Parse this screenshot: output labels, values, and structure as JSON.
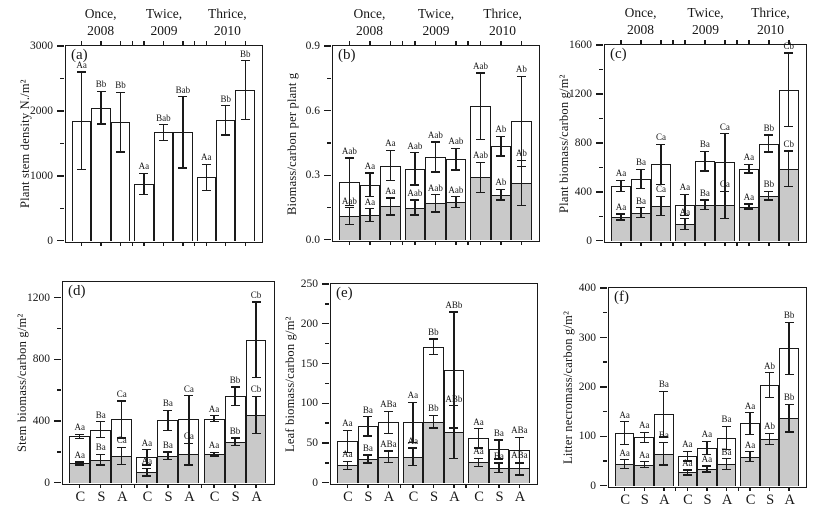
{
  "figure": {
    "background": "#ffffff",
    "axis_color": "#1a1a1a",
    "bar_fill_total": "#ffffff",
    "bar_fill_carbon": "#c9c9c9",
    "x_categories": [
      "C",
      "S",
      "A"
    ],
    "group_headers": [
      {
        "line1": "Once,",
        "line2": "2008"
      },
      {
        "line1": "Twice,",
        "line2": "2009"
      },
      {
        "line1": "Thrice,",
        "line2": "2010"
      }
    ]
  },
  "chart_data": [
    {
      "id": "a",
      "panel_label": "(a)",
      "type": "bar",
      "ylabel": "Plant stem density N./m²",
      "ylim": [
        0,
        3000
      ],
      "minor_step": 500,
      "yticks": [
        {
          "v": 0,
          "label": "0"
        },
        {
          "v": 1000,
          "label": "1000"
        },
        {
          "v": 2000,
          "label": "2000"
        },
        {
          "v": 3000,
          "label": "3000"
        }
      ],
      "two_tone": false,
      "show_group_headers": true,
      "show_x_categories": false,
      "groups": [
        {
          "header": "Once, 2008",
          "bars": [
            {
              "cat": "C",
              "total": 1850,
              "total_err": 750,
              "total_sig": "Aa"
            },
            {
              "cat": "S",
              "total": 2050,
              "total_err": 250,
              "total_sig": "Bb"
            },
            {
              "cat": "A",
              "total": 1830,
              "total_err": 460,
              "total_sig": "Bb"
            }
          ]
        },
        {
          "header": "Twice, 2009",
          "bars": [
            {
              "cat": "C",
              "total": 875,
              "total_err": 165,
              "total_sig": "Aa"
            },
            {
              "cat": "S",
              "total": 1670,
              "total_err": 120,
              "total_sig": "Bab"
            },
            {
              "cat": "A",
              "total": 1670,
              "total_err": 550,
              "total_sig": "Bab"
            }
          ]
        },
        {
          "header": "Thrice, 2010",
          "bars": [
            {
              "cat": "C",
              "total": 980,
              "total_err": 200,
              "total_sig": "Aa"
            },
            {
              "cat": "S",
              "total": 1855,
              "total_err": 225,
              "total_sig": "Bb"
            },
            {
              "cat": "A",
              "total": 2320,
              "total_err": 455,
              "total_sig": "Bb"
            }
          ]
        }
      ]
    },
    {
      "id": "b",
      "panel_label": "(b)",
      "type": "bar",
      "ylabel": "Biomass/carbon per plant g",
      "ylim": [
        0,
        0.9
      ],
      "minor_step": 0.15,
      "yticks": [
        {
          "v": 0,
          "label": "0.0"
        },
        {
          "v": 0.3,
          "label": "0.3"
        },
        {
          "v": 0.6,
          "label": "0.6"
        },
        {
          "v": 0.9,
          "label": "0.9"
        }
      ],
      "two_tone": true,
      "show_group_headers": true,
      "show_x_categories": false,
      "groups": [
        {
          "header": "Once, 2008",
          "bars": [
            {
              "cat": "C",
              "total": 0.27,
              "total_err": 0.11,
              "total_sig": "Aab",
              "carbon": 0.11,
              "carbon_err": 0.04,
              "carbon_sig": "Aab"
            },
            {
              "cat": "S",
              "total": 0.255,
              "total_err": 0.055,
              "total_sig": "Aa",
              "carbon": 0.115,
              "carbon_err": 0.03,
              "carbon_sig": "Aa"
            },
            {
              "cat": "A",
              "total": 0.345,
              "total_err": 0.07,
              "total_sig": "Aa",
              "carbon": 0.155,
              "carbon_err": 0.04,
              "carbon_sig": "Aa"
            }
          ]
        },
        {
          "header": "Twice, 2009",
          "bars": [
            {
              "cat": "C",
              "total": 0.33,
              "total_err": 0.075,
              "total_sig": "Aab",
              "carbon": 0.15,
              "carbon_err": 0.035,
              "carbon_sig": "Aab"
            },
            {
              "cat": "S",
              "total": 0.385,
              "total_err": 0.07,
              "total_sig": "Aab",
              "carbon": 0.17,
              "carbon_err": 0.04,
              "carbon_sig": "Aab"
            },
            {
              "cat": "A",
              "total": 0.375,
              "total_err": 0.05,
              "total_sig": "Aab",
              "carbon": 0.175,
              "carbon_err": 0.025,
              "carbon_sig": "Aab"
            }
          ]
        },
        {
          "header": "Thrice, 2010",
          "bars": [
            {
              "cat": "C",
              "total": 0.62,
              "total_err": 0.155,
              "total_sig": "Aab",
              "carbon": 0.29,
              "carbon_err": 0.07,
              "carbon_sig": "Aab"
            },
            {
              "cat": "S",
              "total": 0.435,
              "total_err": 0.045,
              "total_sig": "Ab",
              "carbon": 0.21,
              "carbon_err": 0.025,
              "carbon_sig": "Ab"
            },
            {
              "cat": "A",
              "total": 0.55,
              "total_err": 0.21,
              "total_sig": "Ab",
              "carbon": 0.265,
              "carbon_err": 0.105,
              "carbon_sig": "Ab"
            }
          ]
        }
      ]
    },
    {
      "id": "c",
      "panel_label": "(c)",
      "type": "bar",
      "ylabel": "Plant biomass/carbon g/m²",
      "ylim": [
        0,
        1600
      ],
      "minor_step": 200,
      "yticks": [
        {
          "v": 0,
          "label": "0"
        },
        {
          "v": 400,
          "label": "400"
        },
        {
          "v": 800,
          "label": "800"
        },
        {
          "v": 1200,
          "label": "1200"
        },
        {
          "v": 1600,
          "label": "1600"
        }
      ],
      "two_tone": true,
      "show_group_headers": true,
      "show_x_categories": false,
      "groups": [
        {
          "header": "Once, 2008",
          "bars": [
            {
              "cat": "C",
              "total": 450,
              "total_err": 45,
              "total_sig": "Aa",
              "carbon": 195,
              "carbon_err": 25,
              "carbon_sig": "Aa"
            },
            {
              "cat": "S",
              "total": 505,
              "total_err": 80,
              "total_sig": "Ba",
              "carbon": 230,
              "carbon_err": 40,
              "carbon_sig": "Ba"
            },
            {
              "cat": "A",
              "total": 625,
              "total_err": 165,
              "total_sig": "Ca",
              "carbon": 285,
              "carbon_err": 80,
              "carbon_sig": "Ca"
            }
          ]
        },
        {
          "header": "Twice, 2009",
          "bars": [
            {
              "cat": "C",
              "total": 295,
              "total_err": 85,
              "total_sig": "Aa",
              "carbon": 135,
              "carbon_err": 45,
              "carbon_sig": "Aa"
            },
            {
              "cat": "S",
              "total": 650,
              "total_err": 80,
              "total_sig": "Ba",
              "carbon": 295,
              "carbon_err": 40,
              "carbon_sig": "Ba"
            },
            {
              "cat": "A",
              "total": 640,
              "total_err": 235,
              "total_sig": "Ca",
              "carbon": 295,
              "carbon_err": 110,
              "carbon_sig": "Ca"
            }
          ]
        },
        {
          "header": "Thrice, 2010",
          "bars": [
            {
              "cat": "C",
              "total": 590,
              "total_err": 35,
              "total_sig": "Aa",
              "carbon": 280,
              "carbon_err": 20,
              "carbon_sig": "Aa"
            },
            {
              "cat": "S",
              "total": 795,
              "total_err": 70,
              "total_sig": "Bb",
              "carbon": 370,
              "carbon_err": 35,
              "carbon_sig": "Bb"
            },
            {
              "cat": "A",
              "total": 1235,
              "total_err": 300,
              "total_sig": "Cb",
              "carbon": 590,
              "carbon_err": 145,
              "carbon_sig": "Cb"
            }
          ]
        }
      ]
    },
    {
      "id": "d",
      "panel_label": "(d)",
      "type": "bar",
      "ylabel": "Stem biomass/carbon g/m²",
      "ylim": [
        0,
        1300
      ],
      "minor_step": 200,
      "yticks": [
        {
          "v": 0,
          "label": "0"
        },
        {
          "v": 400,
          "label": "400"
        },
        {
          "v": 800,
          "label": "800"
        },
        {
          "v": 1200,
          "label": "1200"
        }
      ],
      "two_tone": true,
      "show_group_headers": false,
      "show_x_categories": true,
      "groups": [
        {
          "header": "Once, 2008",
          "bars": [
            {
              "cat": "C",
              "total": 300,
              "total_err": 15,
              "total_sig": "Aa",
              "carbon": 125,
              "carbon_err": 10,
              "carbon_sig": "Aa"
            },
            {
              "cat": "S",
              "total": 345,
              "total_err": 50,
              "total_sig": "Ba",
              "carbon": 150,
              "carbon_err": 35,
              "carbon_sig": "Ba"
            },
            {
              "cat": "A",
              "total": 410,
              "total_err": 120,
              "total_sig": "Ca",
              "carbon": 175,
              "carbon_err": 55,
              "carbon_sig": "Ca"
            }
          ]
        },
        {
          "header": "Twice, 2009",
          "bars": [
            {
              "cat": "C",
              "total": 165,
              "total_err": 50,
              "total_sig": "Aa",
              "carbon": 70,
              "carbon_err": 25,
              "carbon_sig": "Aa"
            },
            {
              "cat": "S",
              "total": 405,
              "total_err": 65,
              "total_sig": "Ba",
              "carbon": 175,
              "carbon_err": 25,
              "carbon_sig": "Ba"
            },
            {
              "cat": "A",
              "total": 410,
              "total_err": 155,
              "total_sig": "Ca",
              "carbon": 185,
              "carbon_err": 70,
              "carbon_sig": "Ca"
            }
          ]
        },
        {
          "header": "Thrice, 2010",
          "bars": [
            {
              "cat": "C",
              "total": 415,
              "total_err": 20,
              "total_sig": "Aa",
              "carbon": 185,
              "carbon_err": 12,
              "carbon_sig": "Aa"
            },
            {
              "cat": "S",
              "total": 560,
              "total_err": 60,
              "total_sig": "Bb",
              "carbon": 265,
              "carbon_err": 25,
              "carbon_sig": "Bb"
            },
            {
              "cat": "A",
              "total": 925,
              "total_err": 245,
              "total_sig": "Cb",
              "carbon": 440,
              "carbon_err": 120,
              "carbon_sig": "Cb"
            }
          ]
        }
      ]
    },
    {
      "id": "e",
      "panel_label": "(e)",
      "type": "bar",
      "ylabel": "Leaf biomass/carbon g/m²",
      "ylim": [
        0,
        250
      ],
      "minor_step": 25,
      "yticks": [
        {
          "v": 0,
          "label": "0"
        },
        {
          "v": 50,
          "label": "50"
        },
        {
          "v": 100,
          "label": "100"
        },
        {
          "v": 150,
          "label": "150"
        },
        {
          "v": 200,
          "label": "200"
        },
        {
          "v": 250,
          "label": "250"
        }
      ],
      "two_tone": true,
      "show_group_headers": false,
      "show_x_categories": true,
      "groups": [
        {
          "header": "Once, 2008",
          "bars": [
            {
              "cat": "C",
              "total": 52,
              "total_err": 14,
              "total_sig": "Aa",
              "carbon": 22,
              "carbon_err": 5,
              "carbon_sig": "Aa"
            },
            {
              "cat": "S",
              "total": 71,
              "total_err": 12,
              "total_sig": "Ba",
              "carbon": 30,
              "carbon_err": 5,
              "carbon_sig": "Ba"
            },
            {
              "cat": "A",
              "total": 76,
              "total_err": 14,
              "total_sig": "ABa",
              "carbon": 33,
              "carbon_err": 7,
              "carbon_sig": "ABa"
            }
          ]
        },
        {
          "header": "Twice, 2009",
          "bars": [
            {
              "cat": "C",
              "total": 76,
              "total_err": 25,
              "total_sig": "Aa",
              "carbon": 33,
              "carbon_err": 11,
              "carbon_sig": "Aa"
            },
            {
              "cat": "S",
              "total": 171,
              "total_err": 10,
              "total_sig": "Bb",
              "carbon": 77,
              "carbon_err": 8,
              "carbon_sig": "Bb"
            },
            {
              "cat": "A",
              "total": 142,
              "total_err": 73,
              "total_sig": "ABb",
              "carbon": 64,
              "carbon_err": 33,
              "carbon_sig": "ABb"
            }
          ]
        },
        {
          "header": "Thrice, 2010",
          "bars": [
            {
              "cat": "C",
              "total": 56,
              "total_err": 12,
              "total_sig": "Aa",
              "carbon": 26,
              "carbon_err": 5,
              "carbon_sig": "Aa"
            },
            {
              "cat": "S",
              "total": 42,
              "total_err": 12,
              "total_sig": "Ba",
              "carbon": 19,
              "carbon_err": 6,
              "carbon_sig": "Ba"
            },
            {
              "cat": "A",
              "total": 41,
              "total_err": 16,
              "total_sig": "ABa",
              "carbon": 18,
              "carbon_err": 8,
              "carbon_sig": "ABa"
            }
          ]
        }
      ]
    },
    {
      "id": "f",
      "panel_label": "(f)",
      "type": "bar",
      "ylabel": "Litter necromass/carbon g/m²",
      "ylim": [
        0,
        400
      ],
      "minor_step": 50,
      "yticks": [
        {
          "v": 0,
          "label": "0"
        },
        {
          "v": 100,
          "label": "100"
        },
        {
          "v": 200,
          "label": "200"
        },
        {
          "v": 300,
          "label": "300"
        },
        {
          "v": 400,
          "label": "400"
        }
      ],
      "two_tone": true,
      "show_group_headers": false,
      "show_x_categories": true,
      "groups": [
        {
          "header": "Once, 2008",
          "bars": [
            {
              "cat": "C",
              "total": 107,
              "total_err": 23,
              "total_sig": "Aa",
              "carbon": 44,
              "carbon_err": 9,
              "carbon_sig": "Aa"
            },
            {
              "cat": "S",
              "total": 98,
              "total_err": 10,
              "total_sig": "Aa",
              "carbon": 43,
              "carbon_err": 6,
              "carbon_sig": "Aa"
            },
            {
              "cat": "A",
              "total": 145,
              "total_err": 46,
              "total_sig": "Ba",
              "carbon": 65,
              "carbon_err": 23,
              "carbon_sig": "Ba"
            }
          ]
        },
        {
          "header": "Twice, 2009",
          "bars": [
            {
              "cat": "C",
              "total": 60,
              "total_err": 10,
              "total_sig": "Aa",
              "carbon": 27,
              "carbon_err": 5,
              "carbon_sig": "Aa"
            },
            {
              "cat": "S",
              "total": 77,
              "total_err": 13,
              "total_sig": "Aa",
              "carbon": 34,
              "carbon_err": 6,
              "carbon_sig": "Aa"
            },
            {
              "cat": "A",
              "total": 97,
              "total_err": 23,
              "total_sig": "Ba",
              "carbon": 44,
              "carbon_err": 11,
              "carbon_sig": "Ba"
            }
          ]
        },
        {
          "header": "Thrice, 2010",
          "bars": [
            {
              "cat": "C",
              "total": 126,
              "total_err": 22,
              "total_sig": "Aa",
              "carbon": 59,
              "carbon_err": 10,
              "carbon_sig": "Aa"
            },
            {
              "cat": "S",
              "total": 204,
              "total_err": 25,
              "total_sig": "Ab",
              "carbon": 95,
              "carbon_err": 11,
              "carbon_sig": "Ab"
            },
            {
              "cat": "A",
              "total": 278,
              "total_err": 53,
              "total_sig": "Bb",
              "carbon": 137,
              "carbon_err": 28,
              "carbon_sig": "Bb"
            }
          ]
        }
      ]
    }
  ]
}
